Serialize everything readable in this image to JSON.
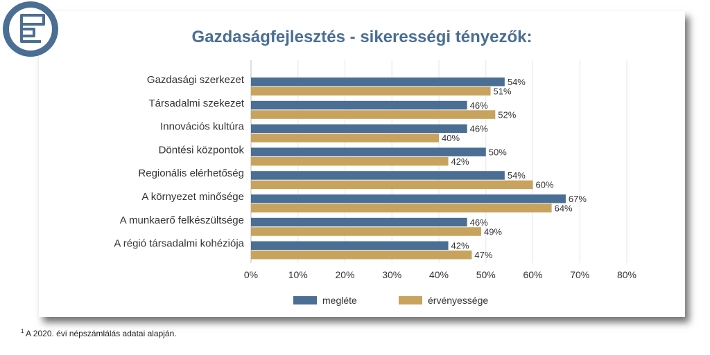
{
  "colors": {
    "accent": "#4a6e94",
    "series1": "#4a6e94",
    "series2": "#c7a35e",
    "text": "#333333",
    "grid": "#e6e6e6"
  },
  "logo": {
    "icon": "flowchart-logo-icon"
  },
  "footnote": {
    "mark": "1",
    "text": "A 2020. évi népszámlálás adatai alapján."
  },
  "chart_data": {
    "type": "bar",
    "orientation": "horizontal",
    "title": "Gazdaságfejlesztés - sikerességi tényezők:",
    "categories": [
      "Gazdasági szerkezet",
      "Társadalmi szekezet",
      "Innovációs kultúra",
      "Döntési központok",
      "Regionális elérhetőség",
      "A környezet minősége",
      "A munkaerő felkészültsége",
      "A régió társadalmi kohéziója"
    ],
    "series": [
      {
        "name": "megléte",
        "values": [
          54,
          46,
          46,
          50,
          54,
          67,
          46,
          42
        ],
        "labels": [
          "54%",
          "46%",
          "46%",
          "50%",
          "54%",
          "67%",
          "46%",
          "42%"
        ]
      },
      {
        "name": "érvényessége",
        "values": [
          51,
          52,
          40,
          42,
          60,
          64,
          49,
          47
        ],
        "labels": [
          "51%",
          "52%",
          "40%",
          "42%",
          "60%",
          "64%",
          "49%",
          "47%"
        ]
      }
    ],
    "xlim": [
      0,
      80
    ],
    "ticks": [
      0,
      10,
      20,
      30,
      40,
      50,
      60,
      70,
      80
    ],
    "tick_labels": [
      "0%",
      "10%",
      "20%",
      "30%",
      "40%",
      "50%",
      "60%",
      "70%",
      "80%"
    ],
    "grid": true,
    "legend_position": "bottom"
  }
}
